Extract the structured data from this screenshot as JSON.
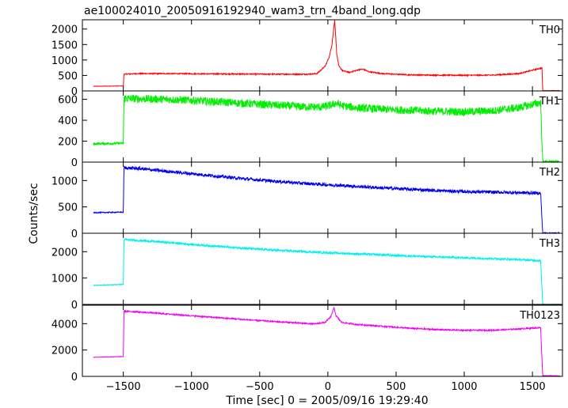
{
  "chart_data": {
    "type": "line",
    "title": "ae100024010_20050916192940_wam3_trn_4band_long.qdp",
    "xlabel": "Time [sec] 0 = 2005/09/16 19:29:40",
    "ylabel": "Counts/sec",
    "xlim": [
      -1800,
      1720
    ],
    "xticks": [
      -1500,
      -1000,
      -500,
      0,
      500,
      1000,
      1500
    ],
    "xtick_labels": [
      "−1500",
      "−1000",
      "−500",
      "0",
      "500",
      "1000",
      "1500"
    ],
    "grid": false,
    "panels": [
      {
        "label": "TH0",
        "color": "#ff0000",
        "ylim": [
          0,
          2300
        ],
        "yticks": [
          0,
          500,
          1000,
          1500,
          2000
        ],
        "ytick_labels": [
          "0",
          "500",
          "1000",
          "1500",
          "2000"
        ],
        "noise": 18,
        "series": [
          [
            -1720,
            150
          ],
          [
            -1500,
            160
          ],
          [
            -1495,
            540
          ],
          [
            -1400,
            560
          ],
          [
            -1200,
            560
          ],
          [
            -1000,
            555
          ],
          [
            -800,
            550
          ],
          [
            -600,
            545
          ],
          [
            -300,
            540
          ],
          [
            -150,
            540
          ],
          [
            -80,
            560
          ],
          [
            -20,
            800
          ],
          [
            10,
            1100
          ],
          [
            30,
            1500
          ],
          [
            50,
            2300
          ],
          [
            65,
            1200
          ],
          [
            80,
            800
          ],
          [
            110,
            650
          ],
          [
            160,
            600
          ],
          [
            230,
            690
          ],
          [
            260,
            700
          ],
          [
            300,
            620
          ],
          [
            400,
            560
          ],
          [
            600,
            520
          ],
          [
            800,
            510
          ],
          [
            1000,
            505
          ],
          [
            1200,
            510
          ],
          [
            1400,
            560
          ],
          [
            1555,
            730
          ],
          [
            1570,
            740
          ],
          [
            1575,
            10
          ],
          [
            1700,
            10
          ]
        ]
      },
      {
        "label": "TH1",
        "color": "#00ee00",
        "ylim": [
          0,
          680
        ],
        "yticks": [
          0,
          200,
          400,
          600
        ],
        "ytick_labels": [
          "0",
          "200",
          "400",
          "600"
        ],
        "noise": 38,
        "series": [
          [
            -1720,
            175
          ],
          [
            -1500,
            180
          ],
          [
            -1495,
            610
          ],
          [
            -1400,
            605
          ],
          [
            -1200,
            600
          ],
          [
            -1000,
            590
          ],
          [
            -800,
            575
          ],
          [
            -600,
            560
          ],
          [
            -400,
            545
          ],
          [
            -200,
            530
          ],
          [
            -50,
            525
          ],
          [
            30,
            545
          ],
          [
            60,
            565
          ],
          [
            100,
            540
          ],
          [
            200,
            520
          ],
          [
            400,
            505
          ],
          [
            600,
            495
          ],
          [
            800,
            485
          ],
          [
            1000,
            480
          ],
          [
            1200,
            490
          ],
          [
            1400,
            520
          ],
          [
            1560,
            570
          ],
          [
            1575,
            5
          ],
          [
            1700,
            5
          ]
        ]
      },
      {
        "label": "TH2",
        "color": "#0000ee",
        "ylim": [
          0,
          1350
        ],
        "yticks": [
          0,
          500,
          1000
        ],
        "ytick_labels": [
          "0",
          "500",
          "1000"
        ],
        "noise": 30,
        "series": [
          [
            -1720,
            390
          ],
          [
            -1500,
            400
          ],
          [
            -1495,
            1240
          ],
          [
            -1400,
            1230
          ],
          [
            -1200,
            1180
          ],
          [
            -1000,
            1130
          ],
          [
            -800,
            1080
          ],
          [
            -600,
            1030
          ],
          [
            -400,
            990
          ],
          [
            -200,
            950
          ],
          [
            0,
            920
          ],
          [
            200,
            890
          ],
          [
            400,
            860
          ],
          [
            600,
            835
          ],
          [
            800,
            810
          ],
          [
            1000,
            790
          ],
          [
            1200,
            780
          ],
          [
            1400,
            770
          ],
          [
            1560,
            760
          ],
          [
            1575,
            5
          ],
          [
            1700,
            5
          ]
        ]
      },
      {
        "label": "TH3",
        "color": "#00eeee",
        "ylim": [
          0,
          2700
        ],
        "yticks": [
          0,
          1000,
          2000
        ],
        "ytick_labels": [
          "0",
          "1000",
          "2000"
        ],
        "noise": 40,
        "series": [
          [
            -1720,
            720
          ],
          [
            -1500,
            760
          ],
          [
            -1495,
            2460
          ],
          [
            -1400,
            2430
          ],
          [
            -1200,
            2360
          ],
          [
            -1000,
            2280
          ],
          [
            -800,
            2200
          ],
          [
            -600,
            2130
          ],
          [
            -400,
            2060
          ],
          [
            -200,
            2010
          ],
          [
            0,
            1960
          ],
          [
            200,
            1920
          ],
          [
            400,
            1880
          ],
          [
            600,
            1840
          ],
          [
            800,
            1800
          ],
          [
            1000,
            1770
          ],
          [
            1200,
            1740
          ],
          [
            1400,
            1700
          ],
          [
            1560,
            1660
          ],
          [
            1575,
            5
          ],
          [
            1700,
            5
          ]
        ]
      },
      {
        "label": "TH0123",
        "color": "#ee00ee",
        "ylim": [
          0,
          5400
        ],
        "yticks": [
          0,
          2000,
          4000
        ],
        "ytick_labels": [
          "0",
          "2000",
          "4000"
        ],
        "noise": 50,
        "series": [
          [
            -1720,
            1450
          ],
          [
            -1500,
            1500
          ],
          [
            -1495,
            4950
          ],
          [
            -1400,
            4900
          ],
          [
            -1200,
            4750
          ],
          [
            -1000,
            4600
          ],
          [
            -800,
            4450
          ],
          [
            -600,
            4300
          ],
          [
            -300,
            4100
          ],
          [
            -100,
            3980
          ],
          [
            -20,
            4100
          ],
          [
            20,
            4500
          ],
          [
            45,
            5200
          ],
          [
            60,
            4600
          ],
          [
            100,
            4100
          ],
          [
            200,
            3950
          ],
          [
            400,
            3800
          ],
          [
            600,
            3650
          ],
          [
            800,
            3550
          ],
          [
            1000,
            3500
          ],
          [
            1200,
            3500
          ],
          [
            1400,
            3600
          ],
          [
            1560,
            3700
          ],
          [
            1575,
            50
          ],
          [
            1700,
            50
          ]
        ]
      }
    ]
  }
}
